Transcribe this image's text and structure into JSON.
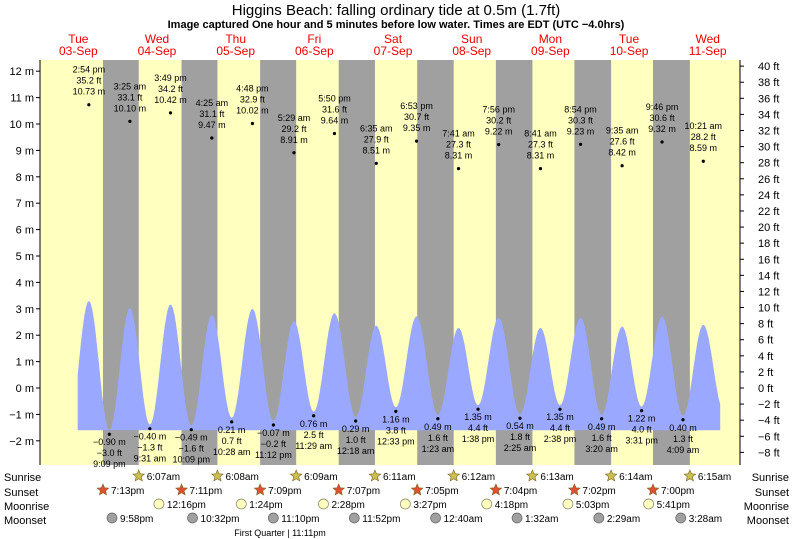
{
  "title": "Higgins Beach: falling  ordinary tide at 0.5m (1.7ft)",
  "subtitle": "Image captured One hour and 5 minutes before low water. Times are EDT (UTC −4.0hrs)",
  "days": [
    {
      "name": "Tue",
      "date": "03-Sep"
    },
    {
      "name": "Wed",
      "date": "04-Sep"
    },
    {
      "name": "Thu",
      "date": "05-Sep"
    },
    {
      "name": "Fri",
      "date": "06-Sep"
    },
    {
      "name": "Sat",
      "date": "07-Sep"
    },
    {
      "name": "Sun",
      "date": "08-Sep"
    },
    {
      "name": "Mon",
      "date": "09-Sep"
    },
    {
      "name": "Tue",
      "date": "10-Sep"
    },
    {
      "name": "Wed",
      "date": "11-Sep"
    }
  ],
  "row_labels": {
    "sunrise": "Sunrise",
    "sunset": "Sunset",
    "moonrise": "Moonrise",
    "moonset": "Moonset"
  },
  "moon_phase_text": "First Quarter | 11:11pm",
  "colors": {
    "day_band": "#ffffc0",
    "night_band": "#a0a0a0",
    "tide_fill": "#9aa8ff",
    "day_name": "#ee0000",
    "sun_star": "#c8c050",
    "sunset_star": "#e05030",
    "moonrise": "#ffffc0",
    "moonset": "#a0a0a0"
  },
  "chart_data": {
    "type": "area",
    "title": "Higgins Beach: falling  ordinary tide at 0.5m (1.7ft)",
    "ylabel_left": "m",
    "ylabel_right": "ft",
    "y_ticks_m": [
      "12 m",
      "11 m",
      "10 m",
      "9 m",
      "8 m",
      "7 m",
      "6 m",
      "5 m",
      "4 m",
      "3 m",
      "2 m",
      "1 m",
      "0 m",
      "−1 m",
      "−2 m"
    ],
    "y_ticks_ft": [
      "40 ft",
      "38 ft",
      "36 ft",
      "34 ft",
      "32 ft",
      "30 ft",
      "28 ft",
      "26 ft",
      "24 ft",
      "22 ft",
      "20 ft",
      "18 ft",
      "16 ft",
      "14 ft",
      "12 ft",
      "10 ft",
      "8 ft",
      "6 ft",
      "4 ft",
      "2 ft",
      "0 ft",
      "−2 ft",
      "−4 ft",
      "−6 ft",
      "−8 ft"
    ],
    "ylim_m": [
      -2.5,
      12.6
    ],
    "x_range_hours": [
      0,
      216
    ],
    "tides": [
      {
        "time": "2:54 pm",
        "t": 14.9,
        "m": 10.73,
        "ft": "35.2 ft",
        "m_label": "10.73 m",
        "type": "high"
      },
      {
        "time": "9:09 pm",
        "t": 21.15,
        "m": -0.9,
        "ft": "−3.0 ft",
        "m_label": "−0.90 m",
        "type": "low"
      },
      {
        "time": "3:25 am",
        "t": 27.42,
        "m": 10.1,
        "ft": "33.1 ft",
        "m_label": "10.10 m",
        "type": "high"
      },
      {
        "time": "9:31 am",
        "t": 33.52,
        "m": -0.4,
        "ft": "−1.3 ft",
        "m_label": "−0.40 m",
        "type": "low"
      },
      {
        "time": "3:49 pm",
        "t": 39.82,
        "m": 10.42,
        "ft": "34.2 ft",
        "m_label": "10.42 m",
        "type": "high"
      },
      {
        "time": "10:09 pm",
        "t": 46.15,
        "m": -0.49,
        "ft": "−1.6 ft",
        "m_label": "−0.49 m",
        "type": "low"
      },
      {
        "time": "4:25 am",
        "t": 52.42,
        "m": 9.47,
        "ft": "31.1 ft",
        "m_label": "9.47 m",
        "type": "high"
      },
      {
        "time": "10:28 am",
        "t": 58.47,
        "m": 0.21,
        "ft": "0.7 ft",
        "m_label": "0.21 m",
        "type": "low"
      },
      {
        "time": "4:48 pm",
        "t": 64.8,
        "m": 10.02,
        "ft": "32.9 ft",
        "m_label": "10.02 m",
        "type": "high"
      },
      {
        "time": "11:12 pm",
        "t": 71.2,
        "m": -0.07,
        "ft": "−0.2 ft",
        "m_label": "−0.07 m",
        "type": "low"
      },
      {
        "time": "5:29 am",
        "t": 77.48,
        "m": 8.91,
        "ft": "29.2 ft",
        "m_label": "8.91 m",
        "type": "high"
      },
      {
        "time": "11:29 am",
        "t": 83.48,
        "m": 0.76,
        "ft": "2.5 ft",
        "m_label": "0.76 m",
        "type": "low"
      },
      {
        "time": "5:50 pm",
        "t": 89.83,
        "m": 9.64,
        "ft": "31.6 ft",
        "m_label": "9.64 m",
        "type": "high"
      },
      {
        "time": "12:18 am",
        "t": 96.3,
        "m": 0.29,
        "ft": "1.0 ft",
        "m_label": "0.29 m",
        "type": "low"
      },
      {
        "time": "6:35 am",
        "t": 102.58,
        "m": 8.51,
        "ft": "27.9 ft",
        "m_label": "8.51 m",
        "type": "high"
      },
      {
        "time": "12:33 pm",
        "t": 108.55,
        "m": 1.16,
        "ft": "3.8 ft",
        "m_label": "1.16 m",
        "type": "low"
      },
      {
        "time": "6:53 pm",
        "t": 114.88,
        "m": 9.35,
        "ft": "30.7 ft",
        "m_label": "9.35 m",
        "type": "high"
      },
      {
        "time": "1:23 am",
        "t": 121.38,
        "m": 0.49,
        "ft": "1.6 ft",
        "m_label": "0.49 m",
        "type": "low"
      },
      {
        "time": "7:41 am",
        "t": 127.68,
        "m": 8.31,
        "ft": "27.3 ft",
        "m_label": "8.31 m",
        "type": "high"
      },
      {
        "time": "1:38 pm",
        "t": 133.63,
        "m": 1.35,
        "ft": "4.4 ft",
        "m_label": "1.35 m",
        "type": "low"
      },
      {
        "time": "7:56 pm",
        "t": 139.93,
        "m": 9.22,
        "ft": "30.2 ft",
        "m_label": "9.22 m",
        "type": "high"
      },
      {
        "time": "2:25 am",
        "t": 146.42,
        "m": 0.54,
        "ft": "1.8 ft",
        "m_label": "0.54 m",
        "type": "low"
      },
      {
        "time": "8:41 am",
        "t": 152.68,
        "m": 8.31,
        "ft": "27.3 ft",
        "m_label": "8.31 m",
        "type": "high"
      },
      {
        "time": "2:38 pm",
        "t": 158.63,
        "m": 1.35,
        "ft": "4.4 ft",
        "m_label": "1.35 m",
        "type": "low"
      },
      {
        "time": "8:54 pm",
        "t": 164.9,
        "m": 9.23,
        "ft": "30.3 ft",
        "m_label": "9.23 m",
        "type": "high"
      },
      {
        "time": "3:20 am",
        "t": 171.33,
        "m": 0.49,
        "ft": "1.6 ft",
        "m_label": "0.49 m",
        "type": "low"
      },
      {
        "time": "9:35 am",
        "t": 177.58,
        "m": 8.42,
        "ft": "27.6 ft",
        "m_label": "8.42 m",
        "type": "high"
      },
      {
        "time": "3:31 pm",
        "t": 183.52,
        "m": 1.22,
        "ft": "4.0 ft",
        "m_label": "1.22 m",
        "type": "low"
      },
      {
        "time": "9:46 pm",
        "t": 189.77,
        "m": 9.32,
        "ft": "30.6 ft",
        "m_label": "9.32 m",
        "type": "high"
      },
      {
        "time": "4:09 am",
        "t": 196.15,
        "m": 0.4,
        "ft": "1.3 ft",
        "m_label": "0.40 m",
        "type": "low"
      },
      {
        "time": "10:21 am",
        "t": 202.35,
        "m": 8.59,
        "ft": "28.2 ft",
        "m_label": "8.59 m",
        "type": "high"
      }
    ],
    "sunrise": [
      {
        "time": "6:07am",
        "t": 30.12
      },
      {
        "time": "6:08am",
        "t": 54.13
      },
      {
        "time": "6:09am",
        "t": 78.15
      },
      {
        "time": "6:11am",
        "t": 102.18
      },
      {
        "time": "6:12am",
        "t": 126.2
      },
      {
        "time": "6:13am",
        "t": 150.22
      },
      {
        "time": "6:14am",
        "t": 174.23
      },
      {
        "time": "6:15am",
        "t": 198.25
      }
    ],
    "sunset": [
      {
        "time": "7:13pm",
        "t": 19.22
      },
      {
        "time": "7:11pm",
        "t": 43.18
      },
      {
        "time": "7:09pm",
        "t": 67.15
      },
      {
        "time": "7:07pm",
        "t": 91.12
      },
      {
        "time": "7:05pm",
        "t": 115.08
      },
      {
        "time": "7:04pm",
        "t": 139.07
      },
      {
        "time": "7:02pm",
        "t": 163.03
      },
      {
        "time": "7:00pm",
        "t": 187.0
      }
    ],
    "moonrise": [
      {
        "time": "12:16pm",
        "t": 36.27
      },
      {
        "time": "1:24pm",
        "t": 61.4
      },
      {
        "time": "2:28pm",
        "t": 86.47
      },
      {
        "time": "3:27pm",
        "t": 111.45
      },
      {
        "time": "4:18pm",
        "t": 136.3
      },
      {
        "time": "5:03pm",
        "t": 161.05
      },
      {
        "time": "5:41pm",
        "t": 185.68
      }
    ],
    "moonset": [
      {
        "time": "9:58pm",
        "t": 21.97
      },
      {
        "time": "10:32pm",
        "t": 46.53
      },
      {
        "time": "11:10pm",
        "t": 71.17
      },
      {
        "time": "11:52pm",
        "t": 95.87
      },
      {
        "time": "12:40am",
        "t": 120.67
      },
      {
        "time": "1:32am",
        "t": 145.53
      },
      {
        "time": "2:29am",
        "t": 170.48
      },
      {
        "time": "3:28am",
        "t": 195.47
      }
    ]
  }
}
